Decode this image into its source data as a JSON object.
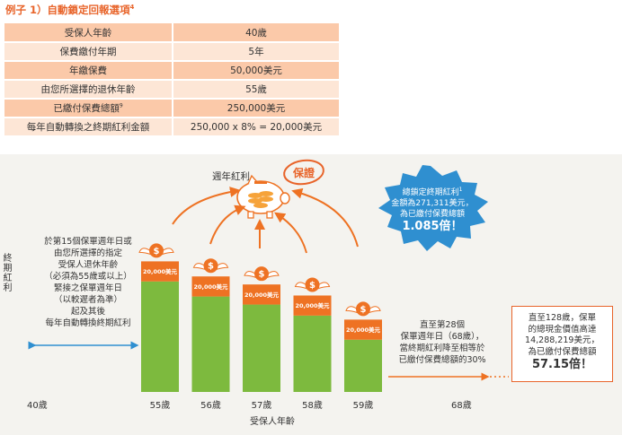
{
  "title": "例子 1）自動鎖定回報選項",
  "title_sup": "4",
  "table": [
    {
      "label": "受保人年齡",
      "label_sup": "",
      "value": "40歲"
    },
    {
      "label": "保費繳付年期",
      "label_sup": "",
      "value": "5年"
    },
    {
      "label": "年繳保費",
      "label_sup": "",
      "value": "50,000美元"
    },
    {
      "label": "由您所選擇的退休年齡",
      "label_sup": "",
      "value": "55歲"
    },
    {
      "label": "已繳付保費總額",
      "label_sup": "9",
      "value": "250,000美元"
    },
    {
      "label": "每年自動轉換之終期紅利金額",
      "label_sup": "",
      "value": "250,000 x 8% = 20,000美元"
    }
  ],
  "pig_label": "週年紅利",
  "badge_text": "保證",
  "y_axis_label": "終期紅利",
  "x_axis_label": "受保人年齡",
  "start_age": "40歲",
  "end_age": "68歲",
  "left_text": [
    "於第15個保單週年日或",
    "由您所選擇的指定",
    "受保人退休年齡",
    "（必須為55歲或以上）",
    "緊接之保單週年日",
    "（以較遲者為準）",
    "起及其後",
    "每年自動轉換終期紅利"
  ],
  "middle_text": [
    "直至第28個",
    "保單週年日（68歲），",
    "當終期紅利降至相等於",
    "已繳付保費總額的30%"
  ],
  "burst": {
    "lines": [
      "總鎖定終期紅利",
      "金額為271,311美元，",
      "為已繳付保費總額"
    ],
    "sup": "1",
    "big": "1.085倍！"
  },
  "box": {
    "lines": [
      "直至128歲，保單",
      "的總現金價值高達",
      "14,288,219美元，",
      "為已繳付保費總額"
    ],
    "big": "57.15倍！"
  },
  "colors": {
    "orange": "#ee7223",
    "green": "#7dba3e",
    "blue": "#2f8fd0",
    "table_dark": "#fbc9a9",
    "table_light": "#fde6d6",
    "panel": "#f4f3ef",
    "badge": "#e8642a"
  },
  "chart_data": {
    "type": "bar",
    "stacked": true,
    "categories": [
      "55歲",
      "56歲",
      "57歲",
      "58歲",
      "59歲"
    ],
    "series": [
      {
        "name": "",
        "color": "#7dba3e",
        "values": [
          110000,
          95000,
          87000,
          76000,
          52000
        ]
      },
      {
        "name": "",
        "color": "#ee7223",
        "values": [
          20000,
          20000,
          20000,
          20000,
          20000
        ],
        "labels": [
          "20,000美元",
          "20,000美元",
          "20,000美元",
          "20,000美元",
          "20,000美元"
        ]
      }
    ],
    "xlabel": "受保人年齡",
    "ylabel": "終期紅利"
  }
}
